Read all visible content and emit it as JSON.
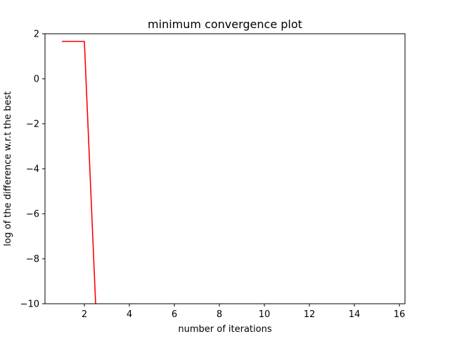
{
  "chart_data": {
    "type": "line",
    "title": "minimum convergence plot",
    "xlabel": "number of iterations",
    "ylabel": "log of the difference w.r.t the best",
    "xlim": [
      0.25,
      16.25
    ],
    "ylim": [
      -10,
      2
    ],
    "xticks": [
      2,
      4,
      6,
      8,
      10,
      12,
      14,
      16
    ],
    "yticks": [
      -10,
      -8,
      -6,
      -4,
      -2,
      0,
      2
    ],
    "xtick_labels": [
      "2",
      "4",
      "6",
      "8",
      "10",
      "12",
      "14",
      "16"
    ],
    "ytick_labels": [
      "−10",
      "−8",
      "−6",
      "−4",
      "−2",
      "0",
      "2"
    ],
    "grid": false,
    "series": [
      {
        "color": "#ff0000",
        "x": [
          1,
          2,
          2.5
        ],
        "y": [
          1.66,
          1.66,
          -10
        ]
      }
    ]
  }
}
